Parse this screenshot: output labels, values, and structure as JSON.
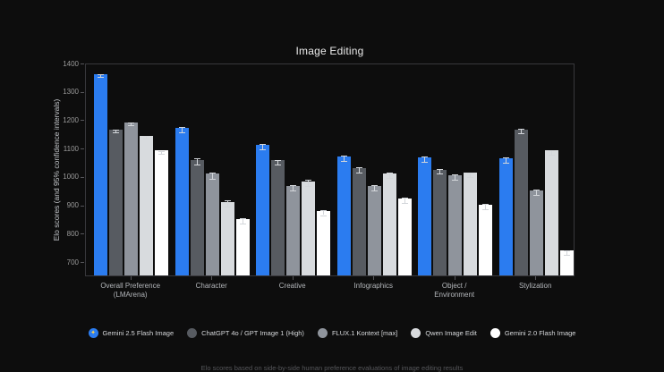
{
  "page": {
    "background": "#0d0d0d"
  },
  "chart_data": {
    "type": "bar",
    "title": "Image Editing",
    "ylabel": "Elo scores (and 95% confidence intervals)",
    "ylim": [
      650,
      1400
    ],
    "yticks": [
      700,
      800,
      900,
      1000,
      1100,
      1200,
      1300,
      1400
    ],
    "grid": false,
    "legend_position": "bottom",
    "categories": [
      "Overall Preference\n(LMArena)",
      "Character",
      "Creative",
      "Infographics",
      "Object /\nEnvironment",
      "Stylization"
    ],
    "series": [
      {
        "name": "Gemini 2.5 Flash Image",
        "color": "#2b7cf0",
        "legend_icon": "gemini-sparkle-icon",
        "values": [
          1360,
          1170,
          1110,
          1068,
          1066,
          1063
        ],
        "ci": [
          5,
          9,
          9,
          9,
          8,
          9
        ]
      },
      {
        "name": "ChatGPT 4o / GPT Image 1 (High)",
        "color": "#575b61",
        "legend_icon": "circle-swatch",
        "values": [
          1165,
          1058,
          1055,
          1028,
          1023,
          1165
        ],
        "ci": [
          5,
          10,
          8,
          10,
          8,
          8
        ]
      },
      {
        "name": "FLUX.1 Kontext [max]",
        "color": "#8f949c",
        "legend_icon": "circle-swatch",
        "values": [
          1190,
          1008,
          965,
          966,
          1002,
          950
        ],
        "ci": [
          4,
          12,
          10,
          10,
          10,
          10
        ]
      },
      {
        "name": "Qwen Image Edit",
        "color": "#d8dbde",
        "legend_icon": "circle-swatch",
        "values": [
          1143,
          910,
          982,
          1010,
          1012,
          1090
        ],
        "ci": [
          4,
          12,
          10,
          10,
          8,
          9
        ]
      },
      {
        "name": "Gemini 2.0 Flash Image",
        "color": "#ffffff",
        "legend_icon": "circle-swatch",
        "values": [
          1090,
          848,
          878,
          922,
          900,
          738
        ],
        "ci": [
          4,
          10,
          9,
          10,
          9,
          8
        ]
      }
    ],
    "gemini_sparkle_glyph": "✦"
  },
  "footer": {
    "note": "Elo scores based on side-by-side human preference evaluations of image editing results"
  }
}
